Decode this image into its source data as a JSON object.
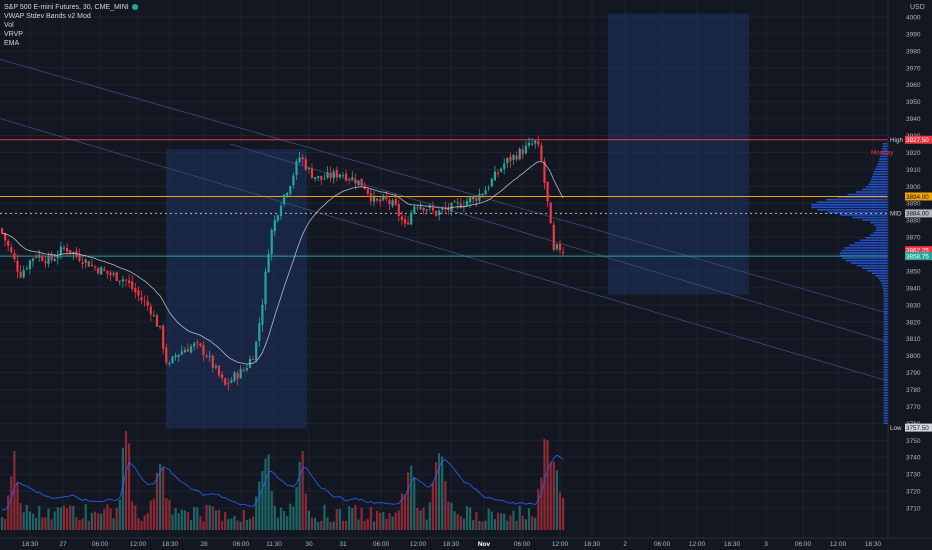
{
  "legend": {
    "title": "S&P 500 E-mini Futures, 30, CME_MINI",
    "indicators": [
      "VWAP Stdev Bands v2 Mod",
      "Vol",
      "VRVP",
      "EMA"
    ]
  },
  "price_axis": {
    "currency": "USD",
    "ticks": [
      4000,
      3990,
      3980,
      3970,
      3960,
      3950,
      3940,
      3930,
      3920,
      3910,
      3900,
      3890,
      3880,
      3870,
      3860,
      3850,
      3840,
      3830,
      3820,
      3810,
      3800,
      3790,
      3780,
      3770,
      3760,
      3750,
      3740,
      3730,
      3720,
      3710
    ]
  },
  "time_axis": {
    "labels": [
      "18:30",
      "27",
      "06:00",
      "12:00",
      "18:30",
      "28",
      "06:00",
      "11:30",
      "30",
      "31",
      "06:00",
      "12:00",
      "18:30",
      "Nov",
      "06:00",
      "12:00",
      "18:30",
      "2",
      "06:00",
      "12:00",
      "18:30",
      "3",
      "06:00",
      "12:00",
      "18:30"
    ]
  },
  "levels": {
    "high": {
      "label": "High",
      "value": "3927.50",
      "color": "#f23645"
    },
    "monday": {
      "label": "Monday",
      "color": "#f23645"
    },
    "mid": {
      "label": "MID",
      "value": "3884.00"
    },
    "orange": {
      "value": "3894.00",
      "color": "#f0a500"
    },
    "current": {
      "value": "3862.25",
      "color": "#f23645"
    },
    "teal": {
      "value": "3858.75",
      "color": "#26a69a"
    },
    "low": {
      "label": "Low",
      "value": "3757.50"
    }
  },
  "colors": {
    "up": "#26a69a",
    "down": "#f23645",
    "vrvp": "#2962ff",
    "ema": "#d1d4dc",
    "zone": "#1e3a6e"
  },
  "chart_data": {
    "type": "candlestick",
    "symbol": "S&P 500 E-mini Futures",
    "interval": "30",
    "exchange": "CME_MINI",
    "ylim": [
      3705,
      4003
    ],
    "close_path": [
      [
        0,
        3875
      ],
      [
        10,
        3862
      ],
      [
        20,
        3848
      ],
      [
        35,
        3860
      ],
      [
        50,
        3856
      ],
      [
        65,
        3864
      ],
      [
        80,
        3858
      ],
      [
        95,
        3852
      ],
      [
        110,
        3848
      ],
      [
        125,
        3845
      ],
      [
        140,
        3834
      ],
      [
        150,
        3828
      ],
      [
        160,
        3815
      ],
      [
        168,
        3792
      ],
      [
        175,
        3800
      ],
      [
        185,
        3804
      ],
      [
        195,
        3806
      ],
      [
        205,
        3802
      ],
      [
        215,
        3792
      ],
      [
        225,
        3782
      ],
      [
        235,
        3788
      ],
      [
        245,
        3792
      ],
      [
        255,
        3803
      ],
      [
        262,
        3830
      ],
      [
        270,
        3870
      ],
      [
        280,
        3890
      ],
      [
        290,
        3902
      ],
      [
        300,
        3918
      ],
      [
        310,
        3908
      ],
      [
        320,
        3904
      ],
      [
        330,
        3906
      ],
      [
        340,
        3908
      ],
      [
        355,
        3904
      ],
      [
        365,
        3900
      ],
      [
        375,
        3890
      ],
      [
        385,
        3892
      ],
      [
        395,
        3888
      ],
      [
        405,
        3876
      ],
      [
        415,
        3890
      ],
      [
        425,
        3888
      ],
      [
        435,
        3884
      ],
      [
        445,
        3886
      ],
      [
        455,
        3888
      ],
      [
        465,
        3891
      ],
      [
        475,
        3893
      ],
      [
        485,
        3898
      ],
      [
        495,
        3906
      ],
      [
        505,
        3914
      ],
      [
        515,
        3918
      ],
      [
        525,
        3922
      ],
      [
        535,
        3926
      ],
      [
        540,
        3920
      ],
      [
        545,
        3900
      ],
      [
        550,
        3880
      ],
      [
        553,
        3860
      ],
      [
        558,
        3864
      ],
      [
        564,
        3862
      ]
    ],
    "note": "Candles generated along the close path; values in price units."
  }
}
